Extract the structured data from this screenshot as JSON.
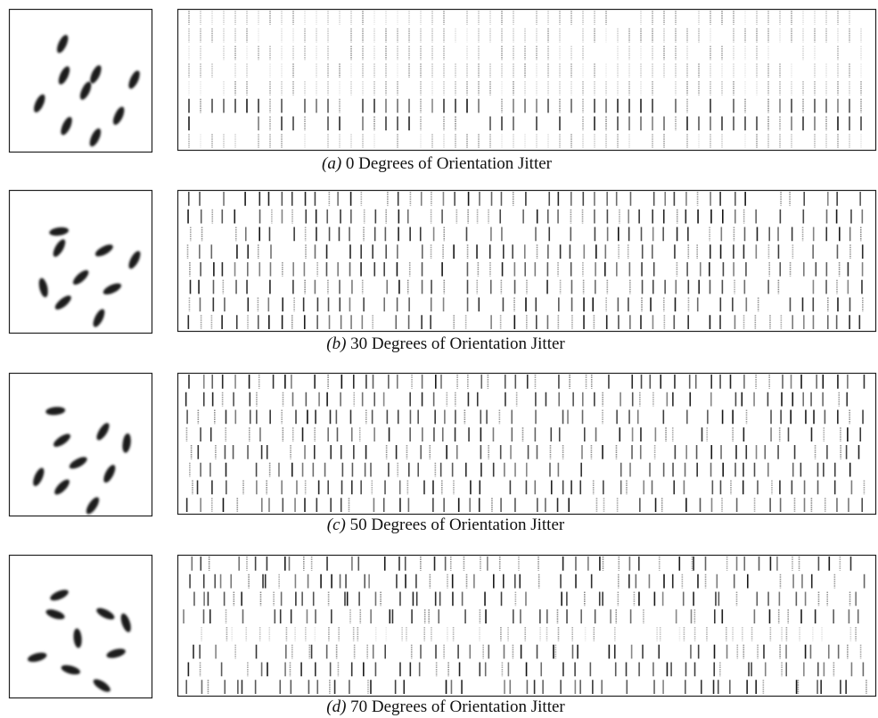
{
  "panels": [
    {
      "label": "(a)",
      "caption": "0 Degrees of Orientation Jitter"
    },
    {
      "label": "(b)",
      "caption": "30 Degrees of Orientation Jitter"
    },
    {
      "label": "(c)",
      "caption": "50 Degrees of Orientation Jitter"
    },
    {
      "label": "(d)",
      "caption": "70 Degrees of Orientation Jitter"
    }
  ]
}
